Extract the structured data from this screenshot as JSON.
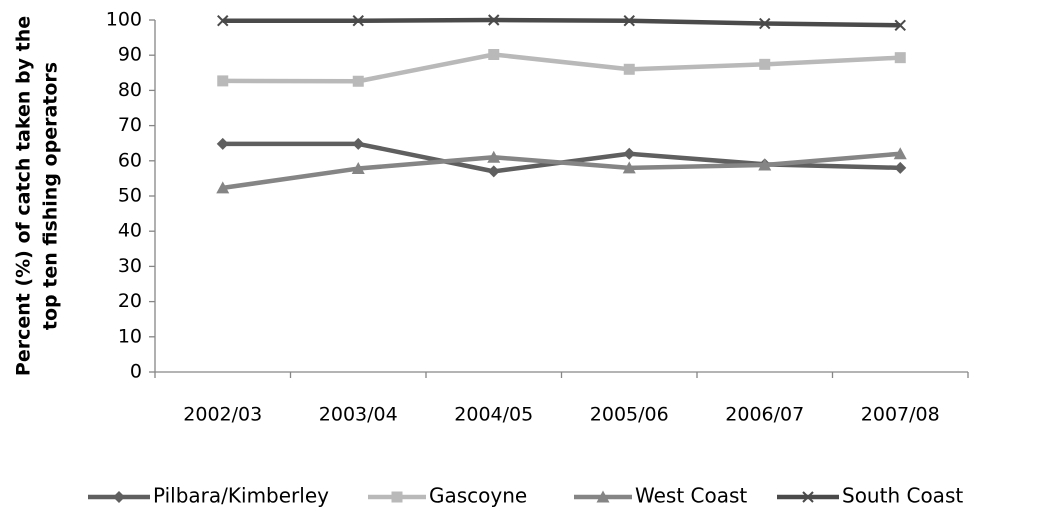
{
  "chart_data": {
    "type": "line",
    "title": "",
    "xlabel": "",
    "ylabel_lines": [
      "Percent (%) of catch taken by the",
      "top ten fishing operators"
    ],
    "categories": [
      "2002/03",
      "2003/04",
      "2004/05",
      "2005/06",
      "2006/07",
      "2007/08"
    ],
    "ylim": [
      0,
      100
    ],
    "yticks": [
      0,
      10,
      20,
      30,
      40,
      50,
      60,
      70,
      80,
      90,
      100
    ],
    "grid": false,
    "legend_position": "bottom",
    "series": [
      {
        "name": "Pilbara/Kimberley",
        "marker": "diamond",
        "color": "#5f5f5f",
        "values": [
          64.8,
          64.8,
          57.0,
          62.0,
          59.0,
          58.0
        ]
      },
      {
        "name": "Gascoyne",
        "marker": "square",
        "color": "#b9b9b9",
        "values": [
          82.7,
          82.6,
          90.2,
          86.0,
          87.4,
          89.3
        ]
      },
      {
        "name": "West Coast",
        "marker": "triangle",
        "color": "#858585",
        "values": [
          52.3,
          57.8,
          61.0,
          58.0,
          58.8,
          62.0
        ]
      },
      {
        "name": "South Coast",
        "marker": "x",
        "color": "#4a4a4a",
        "values": [
          99.8,
          99.8,
          100.0,
          99.8,
          99.0,
          98.5
        ]
      }
    ]
  }
}
